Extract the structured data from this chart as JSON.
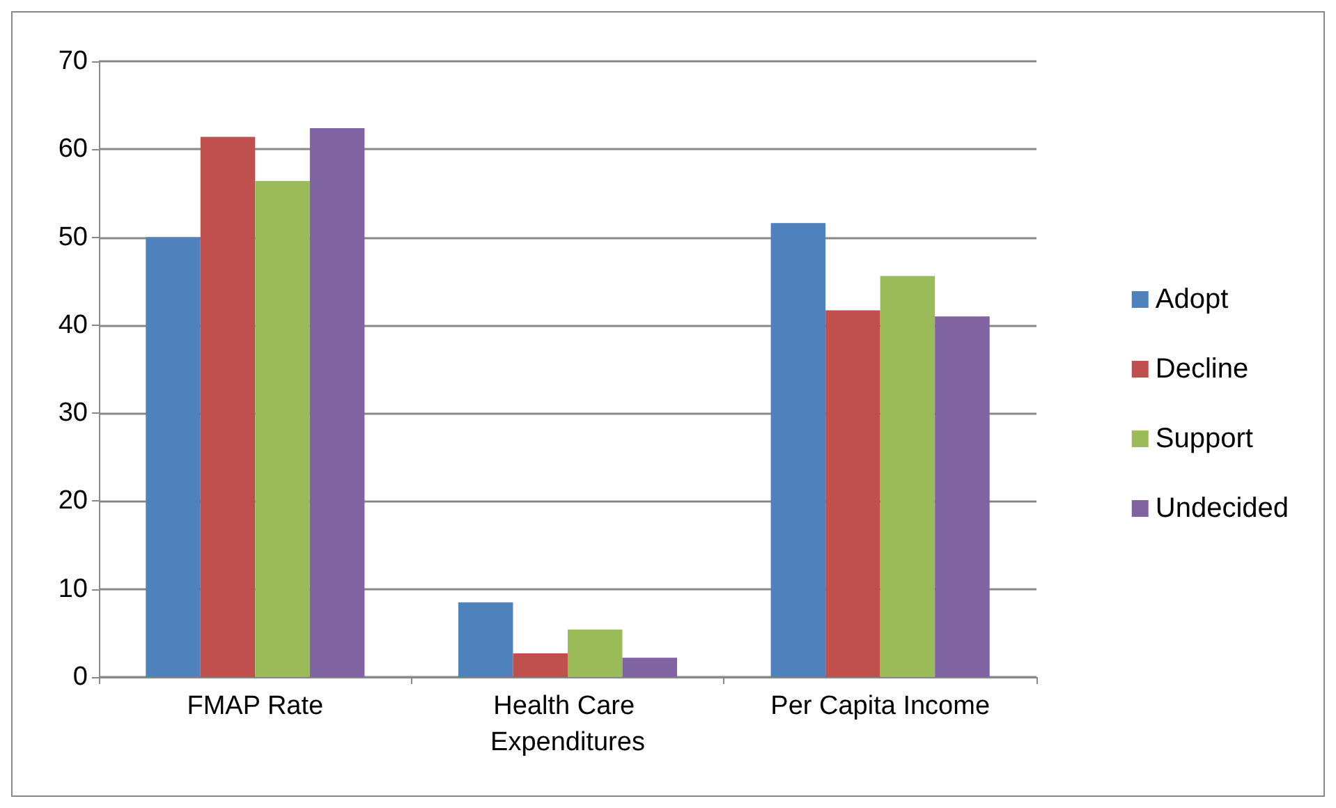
{
  "chart_data": {
    "type": "bar",
    "categories": [
      "FMAP Rate",
      "Health Care Expenditures",
      "Per Capita Income"
    ],
    "series": [
      {
        "name": "Adopt",
        "color": "#4f81bd",
        "values": [
          50.0,
          8.5,
          51.6
        ]
      },
      {
        "name": "Decline",
        "color": "#c0504d",
        "values": [
          61.4,
          2.7,
          41.7
        ]
      },
      {
        "name": "Support",
        "color": "#9bbb59",
        "values": [
          56.4,
          5.4,
          45.6
        ]
      },
      {
        "name": "Undecided",
        "color": "#8064a2",
        "values": [
          62.4,
          2.2,
          41.0
        ]
      }
    ],
    "ylim": [
      0,
      70
    ],
    "yticks": [
      0,
      10,
      20,
      30,
      40,
      50,
      60,
      70
    ],
    "grid": "y",
    "legend": "right"
  }
}
